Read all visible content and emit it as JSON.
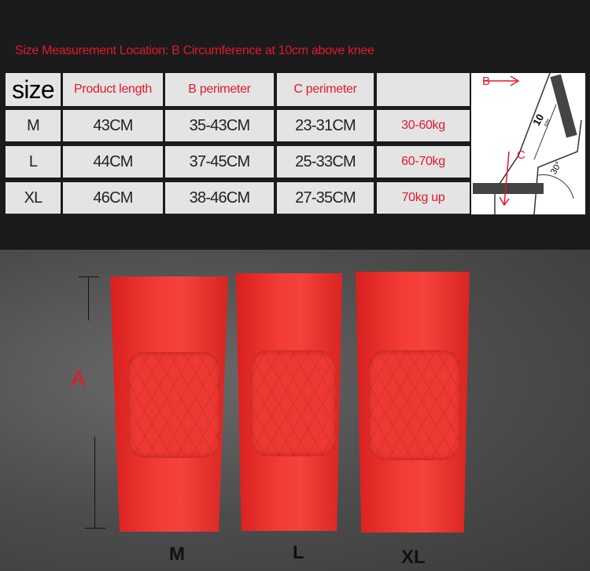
{
  "title": "Size Measurement Location: B  Circumference at 10cm above knee",
  "table": {
    "headers": [
      "size",
      "Product length",
      "B perimeter",
      "C perimeter",
      ""
    ],
    "rows": [
      [
        "M",
        "43CM",
        "35-43CM",
        "23-31CM",
        "30-60kg"
      ],
      [
        "L",
        "44CM",
        "37-45CM",
        "25-33CM",
        "60-70kg"
      ],
      [
        "XL",
        "46CM",
        "38-46CM",
        "27-35CM",
        "70kg up"
      ]
    ]
  },
  "diagram": {
    "label_b": "B",
    "label_c": "C",
    "distance": "10",
    "unit": "cm",
    "angle": "30°"
  },
  "photo": {
    "measure_label": "A",
    "sizes": [
      "M",
      "L",
      "XL"
    ]
  },
  "colors": {
    "accent": "#e0192e",
    "sleeve": "#f23b35"
  }
}
